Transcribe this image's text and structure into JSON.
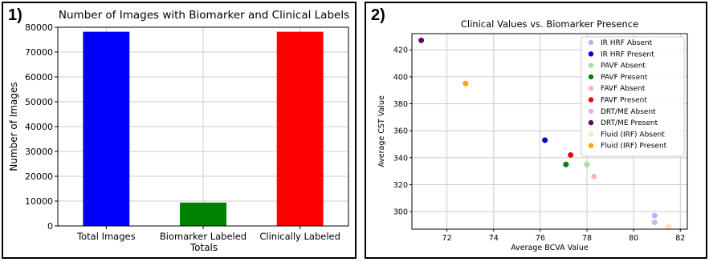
{
  "panels": [
    {
      "label": "1)"
    },
    {
      "label": "2)"
    }
  ],
  "colors": {
    "blue": "#0000ff",
    "green": "#008000",
    "red": "#ff0000",
    "grid": "#cccccc",
    "axis": "#000000"
  },
  "chart_data": [
    {
      "type": "bar",
      "title": "Number of Images with Biomarker and Clinical Labels",
      "xlabel": "Totals",
      "ylabel": "Number of Images",
      "categories": [
        "Total Images",
        "Biomarker Labeled",
        "Clinically Labeled"
      ],
      "values": [
        78189,
        9408,
        78189
      ],
      "bar_colors": [
        "#0000ff",
        "#008000",
        "#ff0000"
      ],
      "ylim": [
        0,
        80000
      ],
      "yticks": [
        0,
        10000,
        20000,
        30000,
        40000,
        50000,
        60000,
        70000,
        80000
      ],
      "grid": true
    },
    {
      "type": "scatter",
      "title": "Clinical Values vs. Biomarker Presence",
      "xlabel": "Average BCVA Value",
      "ylabel": "Average CST Value",
      "xlim": [
        70.5,
        82.3
      ],
      "ylim": [
        287,
        432
      ],
      "xticks": [
        72,
        74,
        76,
        78,
        80,
        82
      ],
      "yticks": [
        300,
        320,
        340,
        360,
        380,
        400,
        420
      ],
      "grid": true,
      "legend_position": "top-right",
      "series": [
        {
          "name": "IR HRF Absent",
          "color": "#b3b3ff",
          "points": [
            [
              80.9,
              297
            ]
          ]
        },
        {
          "name": "IR HRF Present",
          "color": "#0000cc",
          "points": [
            [
              76.2,
              353
            ]
          ]
        },
        {
          "name": "PAVF Absent",
          "color": "#a8dca8",
          "points": [
            [
              78.0,
              335
            ]
          ]
        },
        {
          "name": "PAVF Present",
          "color": "#008000",
          "points": [
            [
              77.1,
              335
            ]
          ]
        },
        {
          "name": "FAVF Absent",
          "color": "#ffb3b3",
          "points": [
            [
              78.3,
              326
            ]
          ]
        },
        {
          "name": "FAVF Present",
          "color": "#ee0000",
          "points": [
            [
              77.3,
              342
            ]
          ]
        },
        {
          "name": "DRT/ME Absent",
          "color": "#d9b3e6",
          "points": [
            [
              80.9,
              292
            ]
          ]
        },
        {
          "name": "DRT/ME Present",
          "color": "#660066",
          "points": [
            [
              70.9,
              427
            ]
          ]
        },
        {
          "name": "Fluid (IRF) Absent",
          "color": "#ffe4b3",
          "points": [
            [
              81.5,
              289
            ]
          ]
        },
        {
          "name": "Fluid (IRF) Present",
          "color": "#ffa500",
          "points": [
            [
              72.8,
              395
            ]
          ]
        }
      ]
    }
  ]
}
